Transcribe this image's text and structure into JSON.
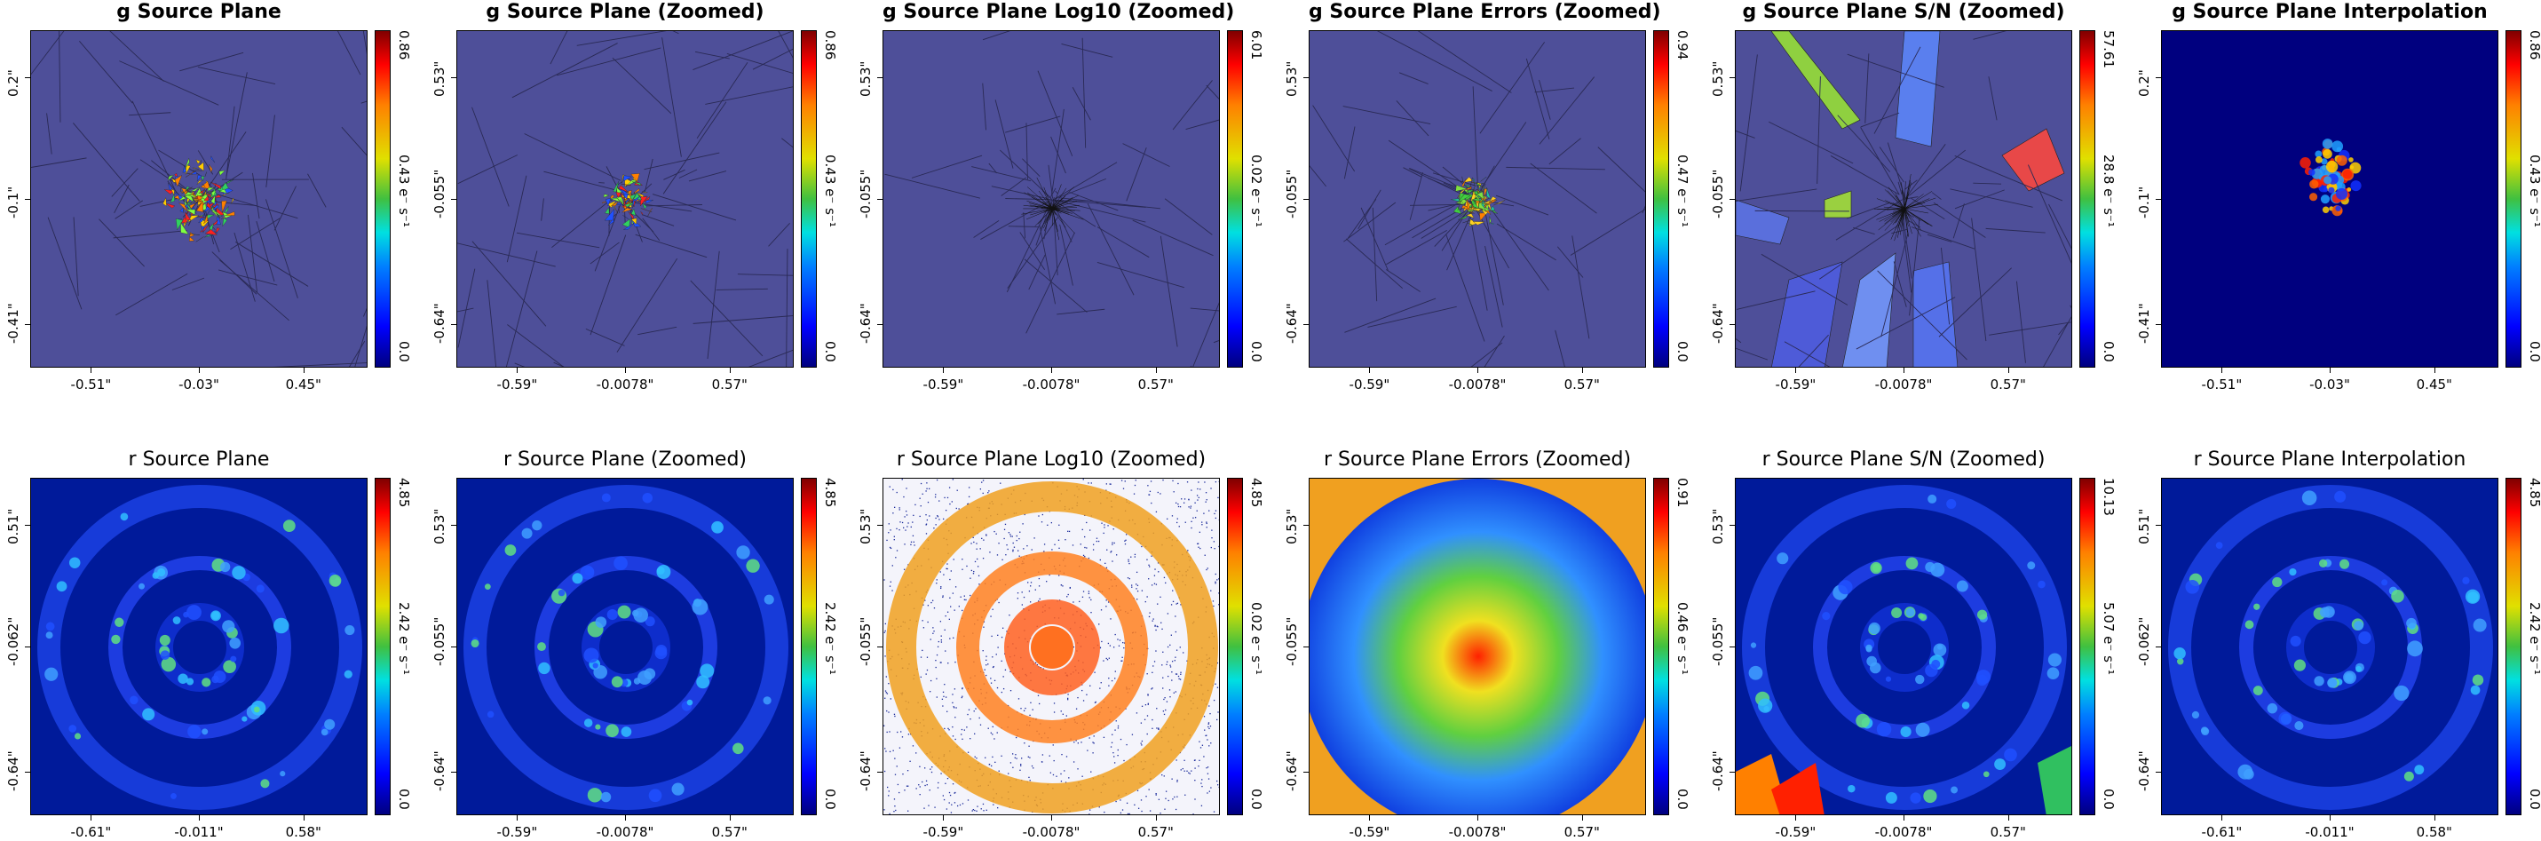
{
  "chart_data": [
    {
      "type": "heatmap",
      "title": "g Source Plane",
      "bold": true,
      "kind": "voronoi-flat",
      "xticks": [
        "-0.51\"",
        "-0.03\"",
        "0.45\""
      ],
      "yticks": [
        "0.2\"",
        "-0.1\"",
        "-0.41\""
      ],
      "cbar": [
        "0.0",
        "0.43 e⁻ s⁻¹",
        "0.86"
      ]
    },
    {
      "type": "heatmap",
      "title": "g Source Plane (Zoomed)",
      "bold": true,
      "kind": "voronoi-flat-small",
      "xticks": [
        "-0.59\"",
        "-0.0078\"",
        "0.57\""
      ],
      "yticks": [
        "0.53\"",
        "-0.055\"",
        "-0.64\""
      ],
      "cbar": [
        "0.0",
        "0.43 e⁻ s⁻¹",
        "0.86"
      ]
    },
    {
      "type": "heatmap",
      "title": "g Source Plane Log10 (Zoomed)",
      "bold": true,
      "kind": "voronoi-plain",
      "xticks": [
        "-0.59\"",
        "-0.0078\"",
        "0.57\""
      ],
      "yticks": [
        "0.53\"",
        "-0.055\"",
        "-0.64\""
      ],
      "cbar": [
        "0.0",
        "0.02 e⁻ s⁻¹",
        "6.01"
      ]
    },
    {
      "type": "heatmap",
      "title": "g Source Plane Errors (Zoomed)",
      "bold": true,
      "kind": "voronoi-errors",
      "xticks": [
        "-0.59\"",
        "-0.0078\"",
        "0.57\""
      ],
      "yticks": [
        "0.53\"",
        "-0.055\"",
        "-0.64\""
      ],
      "cbar": [
        "0.0",
        "0.47 e⁻ s⁻¹",
        "0.94"
      ]
    },
    {
      "type": "heatmap",
      "title": "g Source Plane S/N (Zoomed)",
      "bold": true,
      "kind": "voronoi-sn",
      "xticks": [
        "-0.59\"",
        "-0.0078\"",
        "0.57\""
      ],
      "yticks": [
        "0.53\"",
        "-0.055\"",
        "-0.64\""
      ],
      "cbar": [
        "0.0",
        "28.8 e⁻ s⁻¹",
        "57.61"
      ]
    },
    {
      "type": "heatmap",
      "title": "g Source Plane Interpolation",
      "bold": true,
      "kind": "interp-g",
      "xticks": [
        "-0.51\"",
        "-0.03\"",
        "0.45\""
      ],
      "yticks": [
        "0.2\"",
        "-0.1\"",
        "-0.41\""
      ],
      "cbar": [
        "0.0",
        "0.43 e⁻ s⁻¹",
        "0.86"
      ]
    },
    {
      "type": "heatmap",
      "title": "r Source Plane",
      "bold": false,
      "kind": "ring",
      "xticks": [
        "-0.61\"",
        "-0.011\"",
        "0.58\""
      ],
      "yticks": [
        "0.51\"",
        "-0.062\"",
        "-0.64\""
      ],
      "cbar": [
        "0.0",
        "2.42 e⁻ s⁻¹",
        "4.85"
      ]
    },
    {
      "type": "heatmap",
      "title": "r Source Plane (Zoomed)",
      "bold": false,
      "kind": "ring",
      "xticks": [
        "-0.59\"",
        "-0.0078\"",
        "0.57\""
      ],
      "yticks": [
        "0.53\"",
        "-0.055\"",
        "-0.64\""
      ],
      "cbar": [
        "0.0",
        "2.42 e⁻ s⁻¹",
        "4.85"
      ]
    },
    {
      "type": "heatmap",
      "title": "r Source Plane Log10 (Zoomed)",
      "bold": false,
      "kind": "ring-log",
      "xticks": [
        "-0.59\"",
        "-0.0078\"",
        "0.57\""
      ],
      "yticks": [
        "0.53\"",
        "-0.055\"",
        "-0.64\""
      ],
      "cbar": [
        "0.0",
        "0.02 e⁻ s⁻¹",
        "4.85"
      ]
    },
    {
      "type": "heatmap",
      "title": "r Source Plane Errors (Zoomed)",
      "bold": false,
      "kind": "disc-errors",
      "xticks": [
        "-0.59\"",
        "-0.0078\"",
        "0.57\""
      ],
      "yticks": [
        "0.53\"",
        "-0.055\"",
        "-0.64\""
      ],
      "cbar": [
        "0.0",
        "0.46 e⁻ s⁻¹",
        "0.91"
      ]
    },
    {
      "type": "heatmap",
      "title": "r Source Plane S/N (Zoomed)",
      "bold": false,
      "kind": "ring-sn",
      "xticks": [
        "-0.59\"",
        "-0.0078\"",
        "0.57\""
      ],
      "yticks": [
        "0.53\"",
        "-0.055\"",
        "-0.64\""
      ],
      "cbar": [
        "0.0",
        "5.07 e⁻ s⁻¹",
        "10.13"
      ]
    },
    {
      "type": "heatmap",
      "title": "r Source Plane Interpolation",
      "bold": false,
      "kind": "ring",
      "xticks": [
        "-0.61\"",
        "-0.011\"",
        "0.58\""
      ],
      "yticks": [
        "0.51\"",
        "-0.062\"",
        "-0.64\""
      ],
      "cbar": [
        "0.0",
        "2.42 e⁻ s⁻¹",
        "4.85"
      ]
    }
  ],
  "colors": {
    "background": "#4e4f99",
    "dark": "#00007f",
    "jet_low": "#0000ff",
    "jet_high": "#ff0000"
  }
}
